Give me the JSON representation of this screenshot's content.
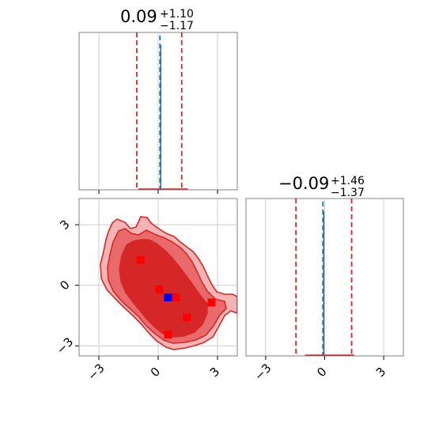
{
  "chart_data": {
    "type": "corner",
    "colors": {
      "contour_line": "#d62728",
      "fill_outer": "#f0a5a5",
      "fill_mid": "#e05757",
      "fill_inner": "#d62728",
      "quantile_line": "#d62728",
      "median_line": "#1f77b4",
      "samples": "#ff0000",
      "truth_marker": "#0000ff",
      "grid": "#cccccc"
    },
    "grid": true,
    "params": [
      {
        "title": "0.09",
        "plus": "+1.10",
        "minus": "−1.17",
        "median": 0.09,
        "q_low": -1.08,
        "q_high": 1.19
      },
      {
        "title": "−0.09",
        "plus": "+1.46",
        "minus": "−1.37",
        "median": -0.09,
        "q_low": -1.46,
        "q_high": 1.37
      }
    ],
    "ticks": [
      -3,
      0,
      3
    ],
    "tick_labels": [
      "−3",
      "0",
      "3"
    ],
    "xlim": [
      -4,
      4
    ],
    "ylim": [
      -3.5,
      4.3
    ],
    "scatter_points": [
      {
        "x": -0.9,
        "y": 1.25
      },
      {
        "x": 0.05,
        "y": -0.2
      },
      {
        "x": 0.9,
        "y": -0.6
      },
      {
        "x": 2.7,
        "y": -0.85
      },
      {
        "x": 1.45,
        "y": -1.6
      },
      {
        "x": 0.5,
        "y": -2.45
      }
    ],
    "truth_point": {
      "x": 0.5,
      "y": -0.6
    }
  }
}
